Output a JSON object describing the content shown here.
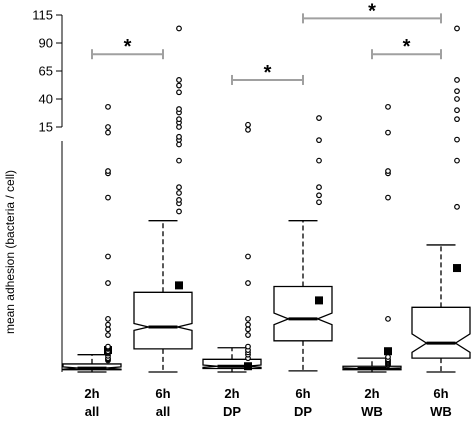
{
  "chart_data": {
    "type": "boxplot",
    "ylabel": "mean adhesion (bacteria / cell)",
    "categories": [
      {
        "time": "2h",
        "group": "all"
      },
      {
        "time": "6h",
        "group": "all"
      },
      {
        "time": "2h",
        "group": "DP"
      },
      {
        "time": "6h",
        "group": "DP"
      },
      {
        "time": "2h",
        "group": "WB"
      },
      {
        "time": "6h",
        "group": "WB"
      }
    ],
    "y_axis": {
      "broken": true,
      "lower_segment": {
        "range": [
          0,
          10
        ],
        "ticks": [
          0,
          1,
          2,
          3,
          4,
          5,
          6,
          7,
          8,
          9,
          10
        ]
      },
      "upper_segment": {
        "range": [
          10,
          115
        ],
        "ticks": [
          15,
          40,
          65,
          90,
          115
        ]
      }
    },
    "boxes": [
      {
        "q1": 0.1,
        "median": 0.17,
        "q3": 0.35,
        "notch_low": 0.12,
        "notch_high": 0.22,
        "whisker_low": 0.0,
        "whisker_high": 0.75,
        "mean": 0.95,
        "outliers": [
          0.5,
          0.55,
          0.6,
          0.7,
          0.8,
          0.85,
          0.9,
          1.0,
          1.05,
          1.1,
          1.6,
          1.85,
          2.05,
          2.3,
          3.85,
          5.0,
          7.55,
          8.6,
          8.7,
          13.0,
          15.0,
          33.0
        ]
      },
      {
        "q1": 1.0,
        "median": 1.95,
        "q3": 3.45,
        "notch_low": 1.8,
        "notch_high": 2.1,
        "whisker_low": 0.0,
        "whisker_high": 6.55,
        "mean": 3.75,
        "outliers": [
          6.95,
          7.3,
          7.45,
          7.75,
          8.0,
          9.15,
          9.85,
          10.4,
          11.5,
          15.0,
          19.0,
          22.0,
          28.0,
          31.0,
          46.0,
          52.0,
          57.0,
          103.0
        ]
      },
      {
        "q1": 0.15,
        "median": 0.25,
        "q3": 0.55,
        "notch_low": 0.2,
        "notch_high": 0.3,
        "whisker_low": 0.0,
        "whisker_high": 1.05,
        "mean": 0.25,
        "outliers": [
          0.6,
          0.75,
          0.85,
          0.95,
          1.1,
          1.6,
          1.85,
          2.05,
          2.3,
          3.85,
          5.0,
          14.0,
          17.0
        ]
      },
      {
        "q1": 1.35,
        "median": 2.3,
        "q3": 3.7,
        "notch_low": 2.05,
        "notch_high": 2.55,
        "whisker_low": 0.05,
        "whisker_high": 6.55,
        "mean": 3.1,
        "outliers": [
          7.35,
          7.65,
          8.0,
          9.15,
          10.3,
          23.0
        ]
      },
      {
        "q1": 0.1,
        "median": 0.15,
        "q3": 0.25,
        "notch_low": 0.12,
        "notch_high": 0.18,
        "whisker_low": 0.0,
        "whisker_high": 0.6,
        "mean": 0.9,
        "outliers": [
          0.3,
          0.35,
          0.4,
          0.45,
          0.5,
          0.55,
          0.65,
          2.3,
          7.55,
          8.6,
          8.7,
          13.0,
          33.0
        ]
      },
      {
        "q1": 0.6,
        "median": 1.25,
        "q3": 2.8,
        "notch_low": 0.85,
        "notch_high": 1.65,
        "whisker_low": 0.0,
        "whisker_high": 5.5,
        "mean": 4.5,
        "outliers": [
          7.15,
          9.15,
          10.5,
          22.0,
          30.0,
          40.0,
          47.0,
          57.0,
          103.0
        ]
      }
    ],
    "significance": [
      {
        "from": 0,
        "to": 1,
        "y": 80,
        "label": "*"
      },
      {
        "from": 2,
        "to": 3,
        "y": 57,
        "label": "*"
      },
      {
        "from": 3,
        "to": 5,
        "y": 112,
        "label": "*"
      },
      {
        "from": 4,
        "to": 5,
        "y": 80,
        "label": "*"
      }
    ],
    "colors": {
      "box_fill": "#ffffff",
      "box_stroke": "#000000",
      "bracket": "#a0a0a0",
      "mean_marker": "#000000"
    }
  }
}
